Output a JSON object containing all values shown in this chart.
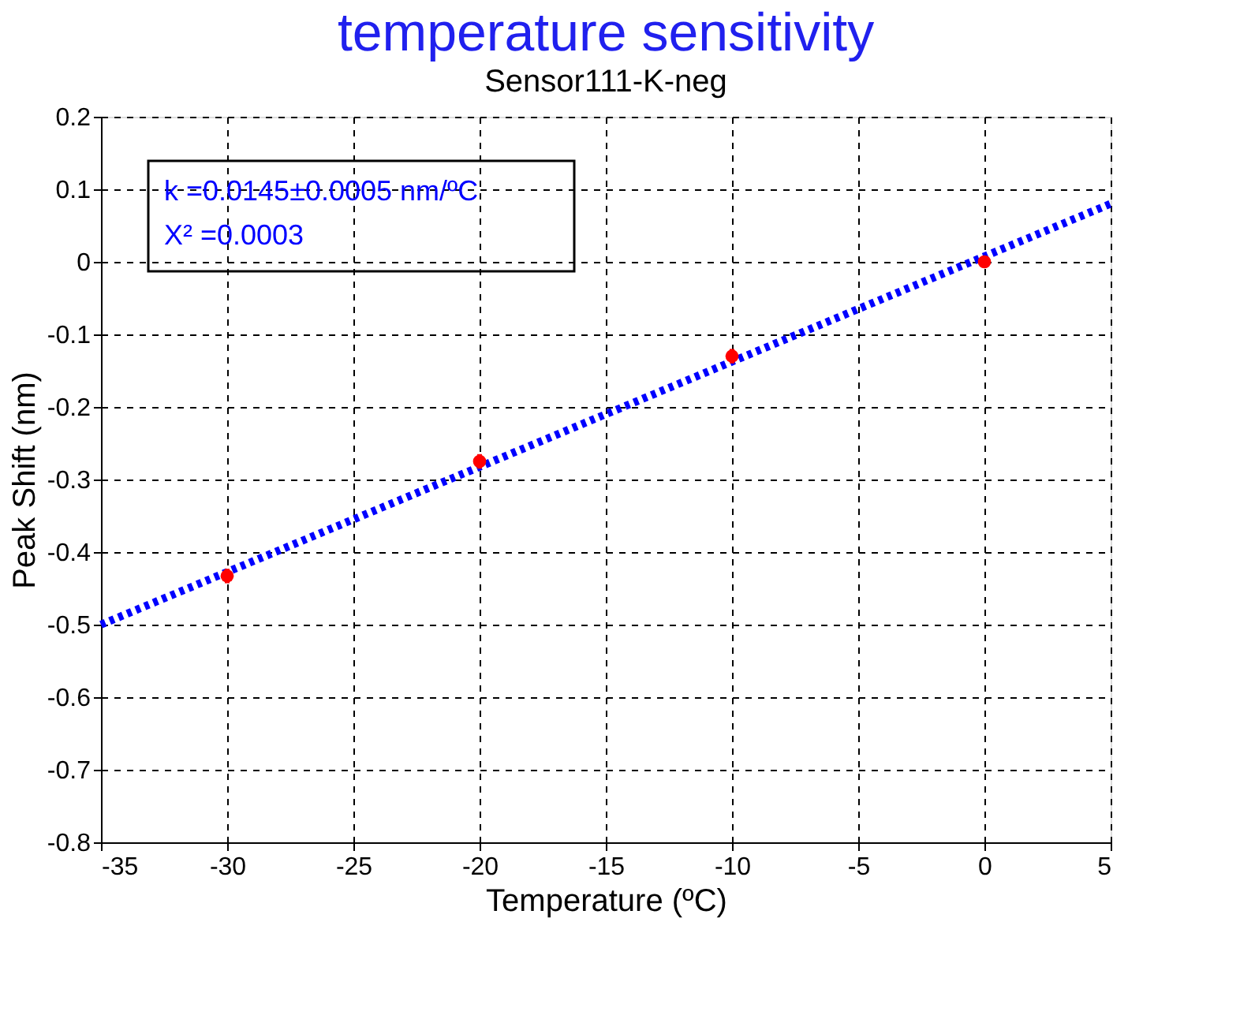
{
  "chart_data": {
    "type": "scatter",
    "title": "Sensor111-K-neg",
    "xlabel": "Temperature (ºC)",
    "ylabel": "Peak Shift (nm)",
    "annotations": [
      "temperature sensitivity",
      "k =0.0145±0.0005 nm/ºC",
      "X² =0.0003"
    ],
    "xlim": [
      -35,
      5
    ],
    "xticks": [
      -35,
      -30,
      -25,
      -20,
      -15,
      -10,
      -5,
      0,
      5
    ],
    "ylim": [
      -0.8,
      0.2
    ],
    "yticks": [
      -0.8,
      -0.7,
      -0.6,
      -0.5,
      -0.4,
      -0.3,
      -0.2,
      -0.1,
      0,
      0.1,
      0.2
    ],
    "grid": true,
    "series": [
      {
        "type": "line",
        "color": "#0000ff",
        "line_style": "dotted",
        "marker": "none",
        "x": [
          -35,
          5
        ],
        "values": [
          -0.5,
          0.08
        ]
      },
      {
        "color": "#ff0000",
        "marker": "circle",
        "x": [
          -30,
          -20,
          -10,
          0
        ],
        "values": [
          -0.433,
          -0.275,
          -0.13,
          0
        ],
        "errors": [
          0.01,
          0.01,
          0.01,
          0.005
        ]
      }
    ]
  }
}
